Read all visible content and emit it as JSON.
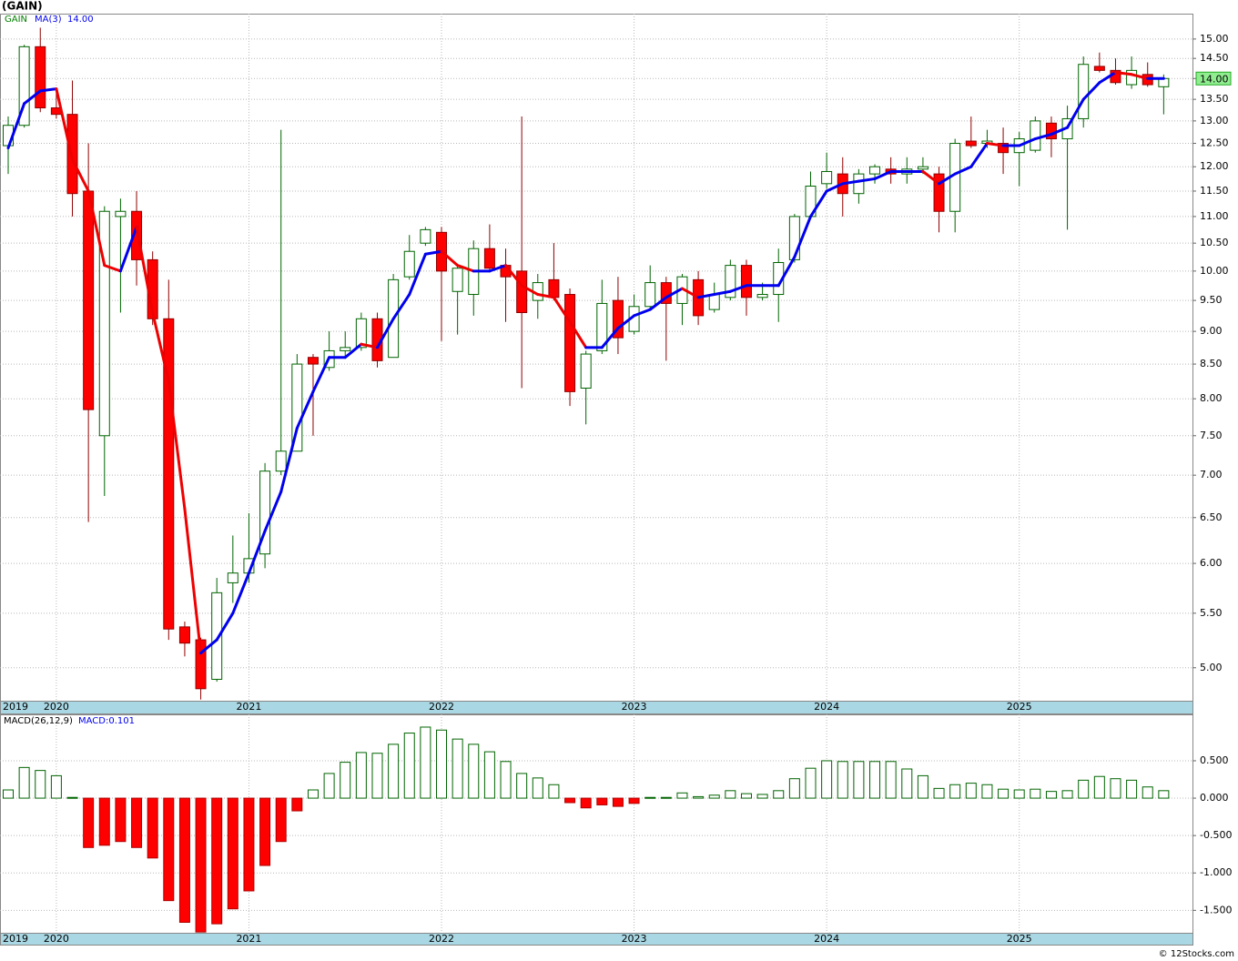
{
  "footer": "© 12Stocks.com",
  "chart_data": [
    {
      "type": "candlestick",
      "title": "(GAIN)",
      "log_scale": true,
      "grid": true,
      "categories": [
        "2019",
        null,
        null,
        "2020",
        null,
        null,
        null,
        null,
        null,
        null,
        null,
        null,
        null,
        null,
        null,
        "2021",
        null,
        null,
        null,
        null,
        null,
        null,
        null,
        null,
        null,
        null,
        null,
        "2022",
        null,
        null,
        null,
        null,
        null,
        null,
        null,
        null,
        null,
        null,
        null,
        "2023",
        null,
        null,
        null,
        null,
        null,
        null,
        null,
        null,
        null,
        null,
        null,
        "2024",
        null,
        null,
        null,
        null,
        null,
        null,
        null,
        null,
        null,
        null,
        null,
        "2025",
        null,
        null,
        null,
        null,
        null,
        null,
        null,
        null,
        null
      ],
      "series": [
        {
          "name": "GAIN",
          "color": "#008000",
          "up_color": "#ffffff",
          "up_edge": "#006400",
          "down_color": "#ff0000",
          "down_edge": "#900000",
          "open": [
            12.45,
            12.9,
            14.8,
            13.3,
            13.15,
            11.5,
            7.5,
            11.0,
            11.1,
            10.2,
            9.2,
            5.37,
            5.25,
            4.9,
            5.8,
            5.9,
            6.1,
            7.05,
            7.3,
            8.6,
            8.45,
            8.7,
            8.75,
            9.2,
            8.6,
            9.9,
            10.5,
            10.7,
            9.65,
            9.6,
            10.4,
            10.1,
            10.0,
            9.5,
            9.85,
            9.6,
            8.15,
            8.7,
            9.5,
            9.0,
            9.4,
            9.8,
            9.45,
            9.85,
            9.35,
            9.55,
            10.1,
            9.55,
            9.6,
            10.2,
            11.0,
            11.65,
            11.85,
            11.45,
            11.85,
            11.95,
            11.85,
            11.95,
            11.85,
            11.1,
            12.55,
            12.5,
            12.5,
            12.3,
            12.35,
            12.95,
            12.6,
            13.05,
            14.3,
            14.2,
            13.85,
            14.1,
            13.8
          ],
          "high": [
            13.1,
            14.85,
            15.3,
            13.75,
            13.95,
            12.5,
            11.2,
            11.35,
            11.5,
            10.35,
            9.85,
            5.42,
            5.27,
            5.85,
            6.3,
            6.55,
            7.15,
            12.8,
            8.65,
            8.65,
            9.0,
            9.0,
            9.3,
            9.3,
            9.95,
            10.65,
            10.8,
            10.8,
            10.1,
            10.55,
            10.85,
            10.4,
            13.1,
            9.95,
            10.5,
            9.7,
            8.7,
            9.85,
            9.9,
            9.6,
            10.1,
            9.9,
            9.95,
            10.0,
            9.8,
            10.2,
            10.2,
            9.8,
            10.4,
            11.05,
            11.9,
            12.3,
            12.2,
            11.95,
            12.05,
            12.2,
            12.2,
            12.2,
            12.0,
            12.6,
            13.1,
            12.8,
            12.85,
            12.75,
            13.1,
            13.1,
            13.35,
            14.55,
            14.65,
            14.5,
            14.55,
            14.4,
            14.1
          ],
          "low": [
            11.85,
            12.85,
            13.2,
            13.05,
            11.0,
            6.45,
            6.75,
            9.3,
            9.75,
            9.1,
            5.25,
            5.1,
            4.73,
            4.88,
            5.6,
            5.8,
            5.95,
            7.0,
            7.3,
            7.5,
            8.4,
            8.6,
            8.7,
            8.45,
            8.6,
            9.85,
            10.45,
            8.85,
            8.95,
            9.25,
            10.0,
            9.15,
            8.15,
            9.2,
            9.5,
            7.9,
            7.65,
            8.65,
            8.65,
            8.95,
            9.35,
            8.55,
            9.1,
            9.1,
            9.3,
            9.5,
            9.25,
            9.5,
            9.15,
            10.15,
            10.95,
            11.55,
            11.0,
            11.25,
            11.65,
            11.65,
            11.65,
            11.85,
            10.7,
            10.7,
            12.4,
            12.4,
            11.85,
            11.6,
            12.3,
            12.2,
            10.75,
            12.85,
            14.15,
            13.85,
            13.75,
            13.8,
            13.15
          ],
          "close": [
            12.9,
            14.8,
            13.3,
            13.15,
            11.45,
            7.85,
            11.1,
            11.1,
            10.2,
            9.2,
            5.35,
            5.22,
            4.82,
            5.7,
            5.9,
            6.05,
            7.05,
            7.3,
            8.5,
            8.5,
            8.7,
            8.75,
            9.2,
            8.55,
            9.85,
            10.35,
            10.75,
            10.0,
            10.05,
            10.4,
            10.05,
            9.9,
            9.3,
            9.8,
            9.55,
            8.1,
            8.65,
            9.45,
            8.9,
            9.4,
            9.8,
            9.45,
            9.9,
            9.25,
            9.6,
            10.1,
            9.55,
            9.6,
            10.15,
            11.0,
            11.6,
            11.9,
            11.45,
            11.85,
            12.0,
            11.85,
            11.95,
            12.0,
            11.1,
            12.5,
            12.45,
            12.55,
            12.3,
            12.6,
            13.0,
            12.6,
            13.05,
            14.35,
            14.2,
            13.9,
            14.2,
            13.85,
            14.0
          ]
        }
      ],
      "ma": {
        "name": "MA(3)",
        "up_color": "#0000ee",
        "down_color": "#ee0000",
        "values": [
          12.4,
          13.4,
          13.7,
          13.75,
          12.15,
          11.5,
          10.1,
          10.0,
          10.8,
          9.3,
          8.25,
          6.6,
          5.13,
          5.25,
          5.5,
          5.9,
          6.35,
          6.8,
          7.6,
          8.1,
          8.6,
          8.6,
          8.8,
          8.75,
          9.2,
          9.6,
          10.3,
          10.35,
          10.1,
          10.0,
          10.0,
          10.1,
          9.75,
          9.6,
          9.55,
          9.15,
          8.75,
          8.75,
          9.05,
          9.25,
          9.35,
          9.55,
          9.7,
          9.55,
          9.6,
          9.65,
          9.75,
          9.75,
          9.75,
          10.25,
          11.0,
          11.5,
          11.65,
          11.7,
          11.75,
          11.9,
          11.9,
          11.9,
          11.65,
          11.85,
          12.0,
          12.5,
          12.45,
          12.45,
          12.6,
          12.7,
          12.85,
          13.5,
          13.9,
          14.15,
          14.1,
          14.0,
          14.0
        ]
      },
      "last": {
        "value": 14,
        "label": "14.00",
        "color": "#90ee90"
      },
      "ylim": [
        4.72,
        15.68
      ],
      "yticks": [
        {
          "value": 5,
          "label": "5.00"
        },
        {
          "value": 5.5,
          "label": "5.50"
        },
        {
          "value": 6,
          "label": "6.00"
        },
        {
          "value": 6.5,
          "label": "6.50"
        },
        {
          "value": 7,
          "label": "7.00"
        },
        {
          "value": 7.5,
          "label": "7.50"
        },
        {
          "value": 8,
          "label": "8.00"
        },
        {
          "value": 8.5,
          "label": "8.50"
        },
        {
          "value": 9,
          "label": "9.00"
        },
        {
          "value": 9.5,
          "label": "9.50"
        },
        {
          "value": 10,
          "label": "10.00"
        },
        {
          "value": 10.5,
          "label": "10.50"
        },
        {
          "value": 11,
          "label": "11.00"
        },
        {
          "value": 11.5,
          "label": "11.50"
        },
        {
          "value": 12,
          "label": "12.00"
        },
        {
          "value": 12.5,
          "label": "12.50"
        },
        {
          "value": 13,
          "label": "13.00"
        },
        {
          "value": 13.5,
          "label": "13.50"
        },
        {
          "value": 14,
          "label": "14.00"
        },
        {
          "value": 14.5,
          "label": "14.50"
        },
        {
          "value": 15,
          "label": "15.00"
        }
      ]
    },
    {
      "type": "bar",
      "title": "MACD(26,12,9)",
      "value_text": "MACD:0.101",
      "grid": true,
      "categories": [
        "2019",
        null,
        null,
        "2020",
        null,
        null,
        null,
        null,
        null,
        null,
        null,
        null,
        null,
        null,
        null,
        "2021",
        null,
        null,
        null,
        null,
        null,
        null,
        null,
        null,
        null,
        null,
        null,
        "2022",
        null,
        null,
        null,
        null,
        null,
        null,
        null,
        null,
        null,
        null,
        null,
        "2023",
        null,
        null,
        null,
        null,
        null,
        null,
        null,
        null,
        null,
        null,
        null,
        "2024",
        null,
        null,
        null,
        null,
        null,
        null,
        null,
        null,
        null,
        null,
        null,
        "2025",
        null,
        null,
        null,
        null,
        null,
        null,
        null,
        null,
        null
      ],
      "values": [
        0.11,
        0.41,
        0.37,
        0.3,
        0.01,
        -0.66,
        -0.63,
        -0.58,
        -0.66,
        -0.8,
        -1.37,
        -1.66,
        -1.79,
        -1.68,
        -1.48,
        -1.24,
        -0.9,
        -0.58,
        -0.17,
        0.11,
        0.33,
        0.48,
        0.61,
        0.6,
        0.72,
        0.87,
        0.95,
        0.91,
        0.79,
        0.72,
        0.62,
        0.49,
        0.33,
        0.27,
        0.18,
        -0.06,
        -0.13,
        -0.09,
        -0.11,
        -0.07,
        0.01,
        0.01,
        0.07,
        0.02,
        0.04,
        0.1,
        0.06,
        0.05,
        0.1,
        0.26,
        0.4,
        0.5,
        0.49,
        0.49,
        0.49,
        0.49,
        0.39,
        0.3,
        0.13,
        0.18,
        0.2,
        0.18,
        0.12,
        0.11,
        0.12,
        0.09,
        0.1,
        0.24,
        0.29,
        0.26,
        0.24,
        0.15,
        0.1
      ],
      "pos_color": "#ffffff",
      "pos_edge": "#006400",
      "neg_color": "#ff0000",
      "neg_edge": "#b00000",
      "text_color": "#0000ee",
      "ylim": [
        -1.8,
        1.12
      ],
      "yticks": [
        {
          "value": -1.5,
          "label": "-1.500"
        },
        {
          "value": -1,
          "label": "-1.000"
        },
        {
          "value": -0.5,
          "label": "-0.500"
        },
        {
          "value": 0,
          "label": "0.000"
        },
        {
          "value": 0.5,
          "label": "0.500"
        }
      ]
    }
  ]
}
